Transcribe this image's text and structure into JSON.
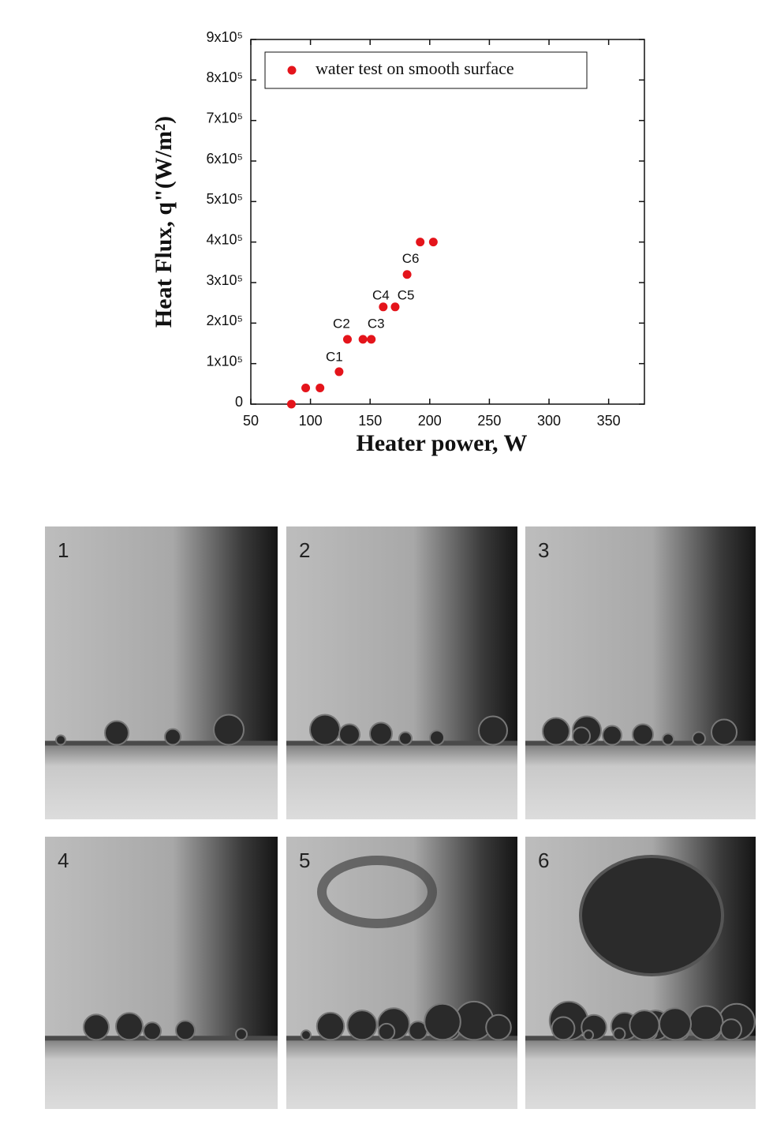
{
  "chart_data": {
    "type": "scatter",
    "x_label": "Heater power, W",
    "y_label": "Heat Flux, q\"(W/m²)",
    "xlim": [
      50,
      380
    ],
    "xticks": [
      50,
      100,
      150,
      200,
      250,
      300,
      350
    ],
    "ylim": [
      0,
      900000
    ],
    "yticks": [
      0,
      {
        "value": 100000,
        "label": "1x10⁵"
      },
      {
        "value": 200000,
        "label": "2x10⁵"
      },
      {
        "value": 300000,
        "label": "3x10⁵"
      },
      {
        "value": 400000,
        "label": "4x10⁵"
      },
      {
        "value": 500000,
        "label": "5x10⁵"
      },
      {
        "value": 600000,
        "label": "6x10⁵"
      },
      {
        "value": 700000,
        "label": "7x10⁵"
      },
      {
        "value": 800000,
        "label": "8x10⁵"
      },
      {
        "value": 900000,
        "label": "9x10⁵"
      }
    ],
    "legend": "upper left",
    "series": [
      {
        "name": "water test on smooth surface",
        "color": "#e4141b",
        "x": [
          84,
          96,
          108,
          124,
          131,
          144,
          151,
          161,
          171,
          181,
          192,
          203
        ],
        "values": [
          0,
          40000,
          40000,
          80000,
          160000,
          160000,
          160000,
          240000,
          240000,
          320000,
          400000,
          400000
        ]
      }
    ],
    "annotations": [
      {
        "text": "C1",
        "x": 120,
        "y": 115000
      },
      {
        "text": "C2",
        "x": 126,
        "y": 197000
      },
      {
        "text": "C3",
        "x": 155,
        "y": 197000
      },
      {
        "text": "C4",
        "x": 159,
        "y": 267000
      },
      {
        "text": "C5",
        "x": 180,
        "y": 267000
      },
      {
        "text": "C6",
        "x": 184,
        "y": 357000
      }
    ]
  },
  "photo_panels": [
    "1",
    "2",
    "3",
    "4",
    "5",
    "6"
  ]
}
